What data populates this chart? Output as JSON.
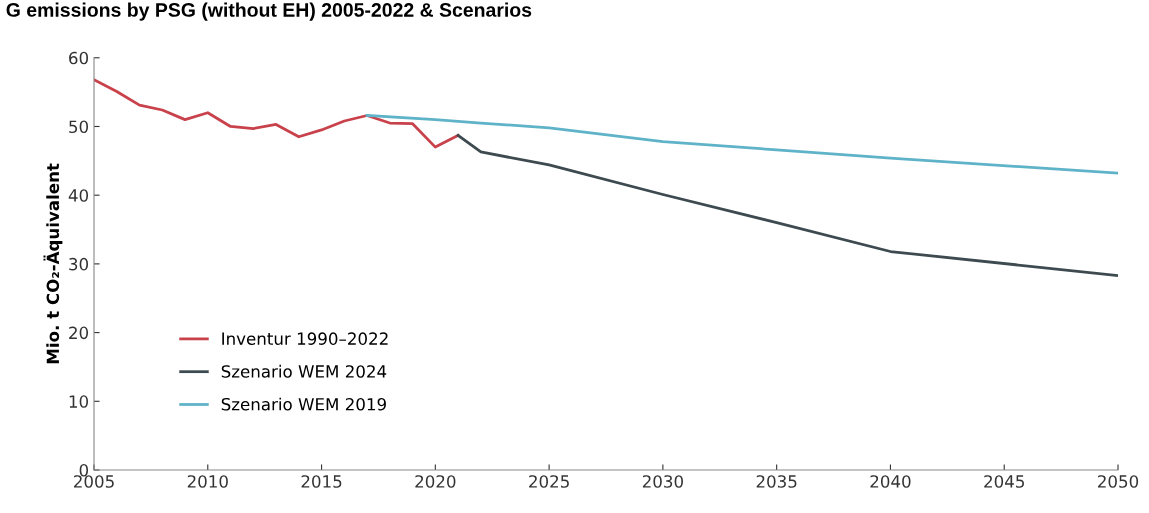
{
  "chart_data": {
    "type": "line",
    "title": "G emissions by PSG (without EH) 2005-2022 & Scenarios",
    "ylabel": "Mio. t CO₂-Äquivalent",
    "series": [
      {
        "name": "Inventur 1990–2022",
        "color": "#c8414b",
        "x": [
          2005,
          2006,
          2007,
          2008,
          2009,
          2010,
          2011,
          2012,
          2013,
          2014,
          2015,
          2016,
          2017,
          2018,
          2019,
          2020,
          2021
        ],
        "values": [
          56.8,
          55.1,
          53.1,
          52.4,
          51.0,
          52.0,
          50.0,
          49.7,
          50.3,
          48.5,
          49.5,
          50.8,
          51.6,
          50.5,
          50.4,
          47.0,
          48.7
        ]
      },
      {
        "name": "Szenario WEM 2024",
        "color": "#3d4a4f",
        "x": [
          2021,
          2022,
          2025,
          2030,
          2035,
          2040,
          2050
        ],
        "values": [
          48.7,
          46.3,
          44.4,
          40.1,
          36.0,
          31.8,
          28.3
        ]
      },
      {
        "name": "Szenario WEM 2019",
        "color": "#5fb3c8",
        "x": [
          2017,
          2020,
          2022,
          2025,
          2030,
          2035,
          2040,
          2050
        ],
        "values": [
          51.6,
          51.0,
          50.5,
          49.8,
          47.8,
          46.6,
          45.4,
          43.2
        ]
      }
    ],
    "xlim": [
      2005,
      2050
    ],
    "xticks": [
      2005,
      2010,
      2015,
      2020,
      2025,
      2030,
      2035,
      2040,
      2045,
      2050
    ],
    "ylim": [
      0,
      60
    ],
    "yticks": [
      0,
      10,
      20,
      30,
      40,
      50,
      60
    ],
    "grid": false,
    "legend": "bottom left",
    "marker": "none",
    "line_style": "solid"
  }
}
